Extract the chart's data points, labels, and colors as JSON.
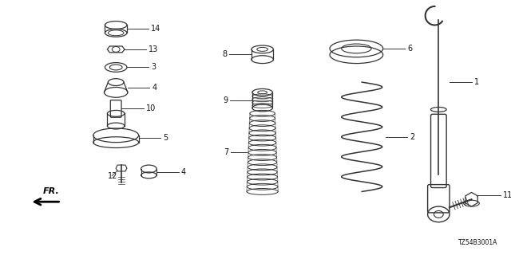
{
  "bg_color": "#ffffff",
  "diagram_code": "TZ54B3001A",
  "line_color": "#333333",
  "text_color": "#111111",
  "font_size": 7.0,
  "fig_w": 6.4,
  "fig_h": 3.2,
  "dpi": 100
}
